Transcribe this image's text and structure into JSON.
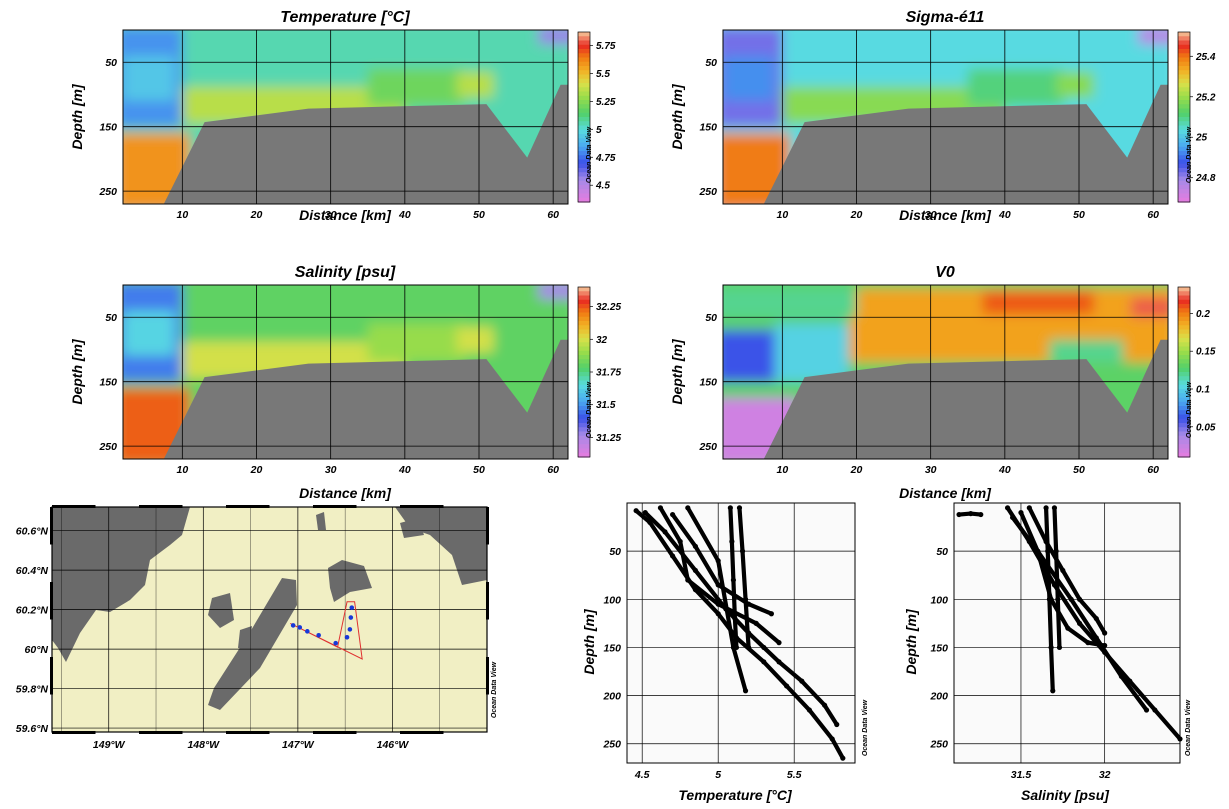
{
  "watermark": "Ocean Data View",
  "chart_data": [
    {
      "type": "heatmap",
      "title": "Temperature [°C]",
      "xlabel": "Distance [km]",
      "ylabel": "Depth [m]",
      "xlim": [
        2,
        62
      ],
      "ylim": [
        0,
        270
      ],
      "xticks": [
        "10",
        "20",
        "30",
        "40",
        "50",
        "60"
      ],
      "yticks": [
        "50",
        "150",
        "250"
      ],
      "colorbar_ticks": [
        "5.75",
        "5.5",
        "5.25",
        "5",
        "4.75",
        "4.5"
      ],
      "colorbar_range": [
        4.35,
        5.87
      ],
      "values": {
        "surface_left": 4.8,
        "bottom_left": 5.6,
        "interior": 5.05,
        "bottom_layer": 5.35,
        "right_surface": 4.55
      },
      "bathymetry": [
        [
          7.5,
          270
        ],
        [
          13,
          143
        ],
        [
          27,
          122
        ],
        [
          51,
          115
        ],
        [
          56.5,
          198
        ],
        [
          61,
          85
        ],
        [
          62,
          85
        ]
      ]
    },
    {
      "type": "heatmap",
      "title": "Sigma-é11",
      "xlabel": "Distance [km]",
      "ylabel": "Depth [m]",
      "xlim": [
        2,
        62
      ],
      "ylim": [
        0,
        270
      ],
      "xticks": [
        "10",
        "20",
        "30",
        "40",
        "50",
        "60"
      ],
      "yticks": [
        "50",
        "150",
        "250"
      ],
      "colorbar_ticks": [
        "25.4",
        "25.2",
        "25",
        "24.8"
      ],
      "colorbar_range": [
        24.68,
        25.52
      ],
      "values": {
        "surface_left": 24.82,
        "bottom_left": 25.4,
        "interior": 25.03,
        "bottom_layer": 25.18,
        "right_surface": 24.75
      },
      "bathymetry": [
        [
          7.5,
          270
        ],
        [
          13,
          143
        ],
        [
          27,
          122
        ],
        [
          51,
          115
        ],
        [
          56.5,
          198
        ],
        [
          61,
          85
        ],
        [
          62,
          85
        ]
      ]
    },
    {
      "type": "heatmap",
      "title": "Salinity [psu]",
      "xlabel": "Distance [km]",
      "ylabel": "Depth [m]",
      "xlim": [
        2,
        62
      ],
      "ylim": [
        0,
        270
      ],
      "xticks": [
        "10",
        "20",
        "30",
        "40",
        "50",
        "60"
      ],
      "yticks": [
        "50",
        "150",
        "250"
      ],
      "colorbar_ticks": [
        "32.25",
        "32",
        "31.75",
        "31.5",
        "31.25"
      ],
      "colorbar_range": [
        31.1,
        32.4
      ],
      "values": {
        "surface_left": 31.45,
        "bottom_left": 32.25,
        "interior": 31.8,
        "bottom_layer": 32.0,
        "right_surface": 31.25
      },
      "bathymetry": [
        [
          7.5,
          270
        ],
        [
          13,
          143
        ],
        [
          27,
          122
        ],
        [
          51,
          115
        ],
        [
          56.5,
          198
        ],
        [
          61,
          85
        ],
        [
          62,
          85
        ]
      ]
    },
    {
      "type": "heatmap",
      "title": "V0",
      "xlabel": "Distance [km]",
      "ylabel": "Depth [m]",
      "xlim": [
        2,
        62
      ],
      "ylim": [
        0,
        270
      ],
      "xticks": [
        "10",
        "20",
        "30",
        "40",
        "50",
        "60"
      ],
      "yticks": [
        "50",
        "150",
        "250"
      ],
      "colorbar_ticks": [
        "0.2",
        "0.15",
        "0.1",
        "0.05"
      ],
      "colorbar_range": [
        0.01,
        0.235
      ],
      "values": {
        "core_east": 0.19,
        "west_deep": 0.04,
        "west_mid": 0.1,
        "interior": 0.13
      },
      "bathymetry": [
        [
          7.5,
          270
        ],
        [
          13,
          143
        ],
        [
          27,
          122
        ],
        [
          51,
          115
        ],
        [
          56.5,
          198
        ],
        [
          61,
          85
        ],
        [
          62,
          85
        ]
      ]
    },
    {
      "type": "map",
      "xlim": [
        -149.6,
        -145.0
      ],
      "ylim": [
        59.58,
        60.72
      ],
      "xticks": [
        "149°W",
        "148°W",
        "147°W",
        "146°W"
      ],
      "yticks": [
        "60.6°N",
        "60.4°N",
        "60.2°N",
        "60°N",
        "59.8°N",
        "59.6°N"
      ],
      "stations": [
        [
          -147.05,
          60.12
        ],
        [
          -146.98,
          60.11
        ],
        [
          -146.9,
          60.09
        ],
        [
          -146.78,
          60.07
        ],
        [
          -146.6,
          60.03
        ],
        [
          -146.48,
          60.06
        ],
        [
          -146.45,
          60.1
        ],
        [
          -146.44,
          60.16
        ],
        [
          -146.43,
          60.21
        ]
      ]
    },
    {
      "type": "scatter",
      "xlabel": "Temperature [°C]",
      "ylabel": "Depth [m]",
      "xlim": [
        4.4,
        5.9
      ],
      "ylim": [
        0,
        270
      ],
      "xticks": [
        "4.5",
        "5",
        "5.5"
      ],
      "yticks": [
        "50",
        "100",
        "150",
        "200",
        "250"
      ],
      "series": [
        {
          "x": [
            4.46,
            4.55,
            4.7,
            4.85,
            5.0,
            5.12,
            5.3,
            5.45,
            5.6,
            5.75,
            5.82
          ],
          "y": [
            8,
            20,
            55,
            90,
            115,
            140,
            165,
            190,
            215,
            245,
            265
          ]
        },
        {
          "x": [
            4.52,
            4.65,
            4.85,
            5.05,
            5.2,
            5.3,
            5.4,
            5.55,
            5.7,
            5.78
          ],
          "y": [
            10,
            30,
            70,
            110,
            135,
            150,
            165,
            185,
            210,
            230
          ]
        },
        {
          "x": [
            4.62,
            4.75,
            4.8,
            5.0,
            5.25,
            5.4
          ],
          "y": [
            5,
            40,
            80,
            105,
            125,
            145
          ]
        },
        {
          "x": [
            4.7,
            4.85,
            5.0,
            5.2,
            5.35
          ],
          "y": [
            12,
            45,
            85,
            105,
            115
          ]
        },
        {
          "x": [
            4.8,
            5.0,
            5.1,
            5.18
          ],
          "y": [
            5,
            60,
            150,
            195
          ]
        },
        {
          "x": [
            5.08,
            5.09,
            5.1,
            5.11,
            5.12
          ],
          "y": [
            5,
            40,
            80,
            120,
            150
          ]
        },
        {
          "x": [
            5.14,
            5.16,
            5.18,
            5.2
          ],
          "y": [
            5,
            50,
            100,
            150
          ]
        }
      ]
    },
    {
      "type": "scatter",
      "xlabel": "Salinity [psu]",
      "ylabel": "Depth [m]",
      "xlim": [
        31.1,
        32.45
      ],
      "ylim": [
        0,
        270
      ],
      "xticks": [
        "31.5",
        "32"
      ],
      "yticks": [
        "50",
        "100",
        "150",
        "200",
        "250"
      ],
      "series": [
        {
          "x": [
            31.13,
            31.2,
            31.26
          ],
          "y": [
            12,
            11,
            12
          ]
        },
        {
          "x": [
            31.42,
            31.55,
            31.7,
            31.85,
            32.0,
            32.15,
            32.3,
            32.45
          ],
          "y": [
            5,
            40,
            85,
            125,
            155,
            185,
            215,
            245
          ]
        },
        {
          "x": [
            31.45,
            31.6,
            31.8,
            31.95,
            32.1,
            32.25
          ],
          "y": [
            15,
            50,
            100,
            140,
            180,
            215
          ]
        },
        {
          "x": [
            31.5,
            31.6,
            31.68,
            31.78,
            31.9,
            32.0
          ],
          "y": [
            10,
            50,
            100,
            130,
            145,
            148
          ]
        },
        {
          "x": [
            31.55,
            31.65,
            31.75,
            31.85,
            31.95,
            32.0
          ],
          "y": [
            5,
            40,
            70,
            100,
            120,
            135
          ]
        },
        {
          "x": [
            31.65,
            31.66,
            31.67,
            31.68,
            31.69
          ],
          "y": [
            5,
            50,
            100,
            150,
            195
          ]
        },
        {
          "x": [
            31.7,
            31.71,
            31.72,
            31.73
          ],
          "y": [
            5,
            50,
            100,
            150
          ]
        }
      ]
    }
  ]
}
